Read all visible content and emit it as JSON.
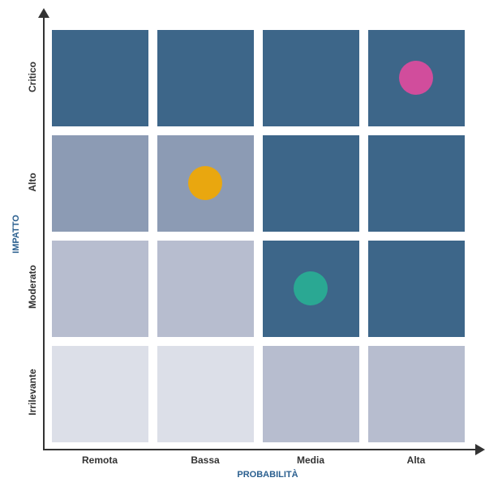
{
  "x_axis": {
    "title": "PROBABILITÀ",
    "labels": [
      "Remota",
      "Bassa",
      "Media",
      "Alta"
    ]
  },
  "y_axis": {
    "title": "IMPATTO",
    "labels": [
      "Critico",
      "Alto",
      "Moderato",
      "Irrilevante"
    ]
  },
  "colors": {
    "high": "#3d6689",
    "medium_high": "#8c9bb4",
    "medium": "#b7bdcf",
    "low": "#dcdfe8",
    "axis": "#333333",
    "title": "#2a5f8f"
  },
  "grid": [
    [
      "high",
      "high",
      "high",
      "high"
    ],
    [
      "medium_high",
      "medium_high",
      "high",
      "high"
    ],
    [
      "medium",
      "medium",
      "high",
      "high"
    ],
    [
      "low",
      "low",
      "medium",
      "medium"
    ]
  ],
  "markers": [
    {
      "probability": "Alta",
      "impact": "Critico",
      "color": "#d14d9c"
    },
    {
      "probability": "Bassa",
      "impact": "Alto",
      "color": "#e9a70f"
    },
    {
      "probability": "Media",
      "impact": "Moderato",
      "color": "#2aa893"
    }
  ]
}
